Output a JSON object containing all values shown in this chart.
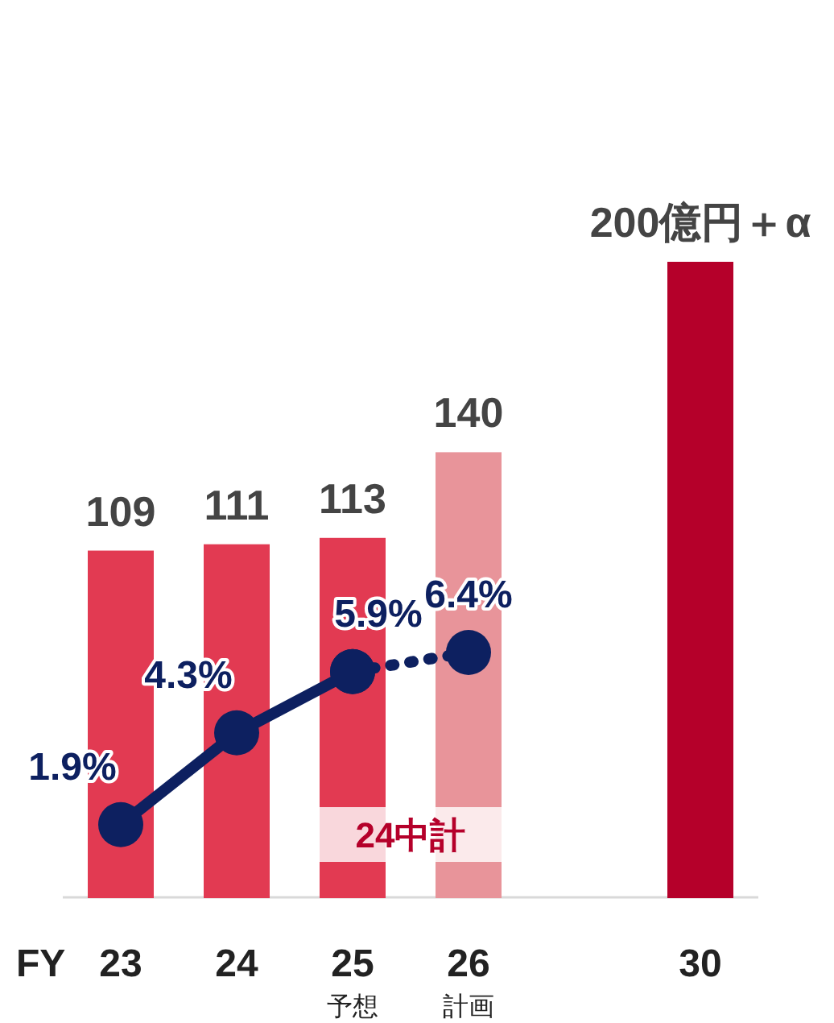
{
  "chart_data": {
    "type": "bar",
    "xlabel": "FY",
    "categories": [
      "23",
      "24",
      "25\n予想",
      "26\n計画",
      null,
      "30"
    ],
    "tick_labels": "x",
    "series": [
      {
        "colors": [
          "#e23a52",
          "#e23a52",
          "#e23a52",
          "#e8949a",
          null,
          "#b5002a"
        ],
        "values": [
          109,
          111,
          113,
          140,
          null,
          200
        ],
        "value_labels": [
          "109",
          "111",
          "113",
          "140",
          null,
          "200億円＋α"
        ]
      },
      {
        "type": "line",
        "axis": "y2",
        "color": "#0d2060",
        "marker": "circle",
        "line_style": "solid",
        "values": [
          1.9,
          4.3,
          5.9,
          null,
          null,
          null
        ],
        "value_labels": [
          "1.9%",
          "4.3%",
          "5.9%",
          null,
          null,
          null
        ]
      },
      {
        "type": "line",
        "axis": "y2",
        "color": "#0d2060",
        "marker": "circle",
        "line_style": "dotted",
        "values": [
          null,
          null,
          5.9,
          6.4,
          null,
          null
        ],
        "value_labels": [
          null,
          null,
          null,
          "6.4%",
          null,
          null
        ]
      }
    ],
    "annotations": [
      "24中計"
    ]
  }
}
